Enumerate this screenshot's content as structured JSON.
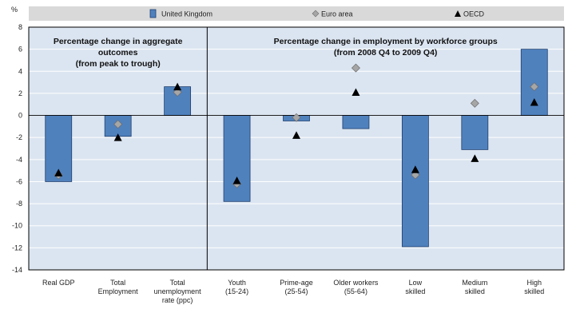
{
  "chart_data": {
    "type": "bar",
    "y_unit_label": "%",
    "ylim": [
      -14,
      8
    ],
    "yticks": [
      -14,
      -12,
      -10,
      -8,
      -6,
      -4,
      -2,
      0,
      2,
      4,
      6,
      8
    ],
    "grid": true,
    "legend_position": "top",
    "categories": [
      [
        "Real GDP"
      ],
      [
        "Total",
        "Employment"
      ],
      [
        "Total",
        "unemployment",
        "rate (ppc)"
      ],
      [
        "Youth",
        "(15-24)"
      ],
      [
        "Prime-age",
        "(25-54)"
      ],
      [
        "Older workers",
        "(55-64)"
      ],
      [
        "Low",
        "skilled"
      ],
      [
        "Medium",
        "skilled"
      ],
      [
        "High",
        "skilled"
      ]
    ],
    "panels": [
      {
        "title_lines": [
          "Percentage change  in aggregate",
          "outcomes",
          "(from peak to trough)"
        ],
        "category_count": 3
      },
      {
        "title_lines": [
          "Percentage change  in employment by workforce groups",
          "(from 2008 Q4 to 2009 Q4)"
        ],
        "category_count": 6
      }
    ],
    "series": [
      {
        "name": "United Kingdom",
        "marker": "bar",
        "color": "#4f81bd",
        "values": [
          -6.0,
          -1.9,
          2.6,
          -7.8,
          -0.5,
          -1.2,
          -11.9,
          -3.1,
          6.0
        ]
      },
      {
        "name": "Euro area",
        "marker": "diamond",
        "color": "#a6a6a6",
        "values": [
          -5.4,
          -0.8,
          2.1,
          -6.2,
          -0.2,
          4.3,
          -5.4,
          1.1,
          2.6
        ]
      },
      {
        "name": "OECD",
        "marker": "triangle",
        "color": "#000000",
        "values": [
          -5.2,
          -2.0,
          2.6,
          -5.9,
          -1.8,
          2.1,
          -4.9,
          -3.9,
          1.2
        ]
      }
    ]
  }
}
